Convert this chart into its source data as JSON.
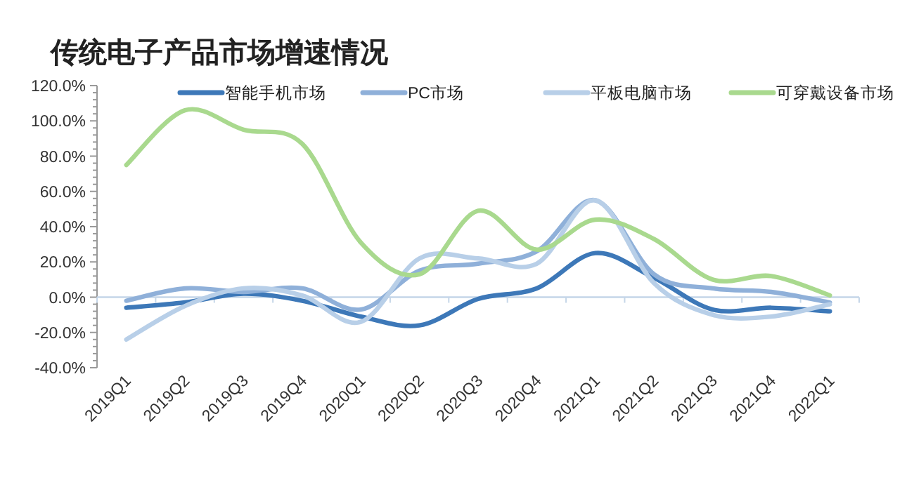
{
  "chart_data": {
    "type": "line",
    "title": "传统电子产品市场增速情况",
    "categories": [
      "2019Q1",
      "2019Q2",
      "2019Q3",
      "2019Q4",
      "2020Q1",
      "2020Q2",
      "2020Q3",
      "2020Q4",
      "2021Q1",
      "2021Q2",
      "2021Q3",
      "2021Q4",
      "2022Q1"
    ],
    "series": [
      {
        "name": "智能手机市场",
        "color": "#3d78b8",
        "values": [
          -6,
          -3,
          2,
          -2,
          -11,
          -16,
          -1,
          5,
          25,
          11,
          -7,
          -6,
          -8
        ]
      },
      {
        "name": "PC市场",
        "color": "#8fb0d9",
        "values": [
          -2,
          5,
          3,
          5,
          -7,
          15,
          19,
          26,
          55,
          13,
          5,
          3,
          -3
        ]
      },
      {
        "name": "平板电脑市场",
        "color": "#b8cfe8",
        "values": [
          -24,
          -5,
          5,
          1,
          -14,
          22,
          22,
          19,
          55,
          8,
          -10,
          -11,
          -4
        ]
      },
      {
        "name": "可穿戴设备市场",
        "color": "#a9d98e",
        "values": [
          75,
          106,
          95,
          87,
          31,
          13,
          49,
          27,
          44,
          33,
          10,
          12,
          1
        ]
      }
    ],
    "ylim": [
      -40,
      120
    ],
    "yticks": [
      {
        "value": -40,
        "label": "-40.0%"
      },
      {
        "value": -20,
        "label": "-20.0%"
      },
      {
        "value": 0,
        "label": "0.0%"
      },
      {
        "value": 20,
        "label": "20.0%"
      },
      {
        "value": 40,
        "label": "40.0%"
      },
      {
        "value": 60,
        "label": "60.0%"
      },
      {
        "value": 80,
        "label": "80.0%"
      },
      {
        "value": 100,
        "label": "100.0%"
      },
      {
        "value": 120,
        "label": "120.0%"
      }
    ],
    "legend": "top",
    "marker": "none",
    "line_style": "solid"
  }
}
